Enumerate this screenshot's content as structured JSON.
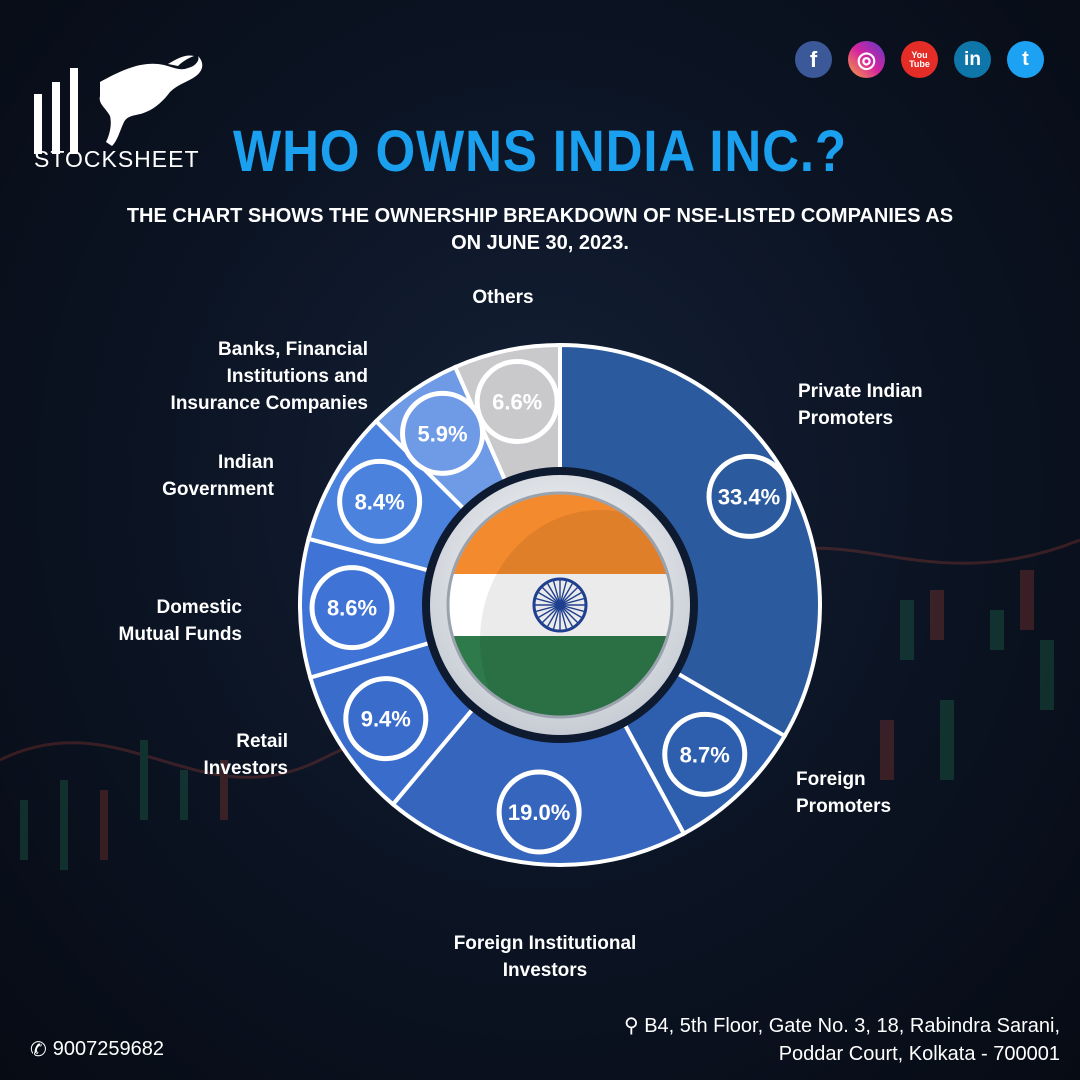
{
  "brand": {
    "name": "STOCKSHEET"
  },
  "socials": [
    {
      "name": "facebook-icon",
      "glyph": "f",
      "color": "#3b5998"
    },
    {
      "name": "instagram-icon",
      "glyph": "◎",
      "color": "#d6249f"
    },
    {
      "name": "youtube-icon",
      "glyph": "You\nTube",
      "color": "#e52d27"
    },
    {
      "name": "linkedin-icon",
      "glyph": "in",
      "color": "#0e76a8"
    },
    {
      "name": "twitter-icon",
      "glyph": "t",
      "color": "#1da1f2"
    }
  ],
  "header": {
    "title": "WHO OWNS INDIA INC.?",
    "subtitle": "THE CHART SHOWS THE OWNERSHIP BREAKDOWN OF NSE-LISTED COMPANIES AS ON JUNE 30, 2023."
  },
  "chart_data": {
    "type": "pie",
    "title": "WHO OWNS INDIA INC.?",
    "unit": "%",
    "slices": [
      {
        "label": "Private Indian\nPromoters",
        "value": 33.4,
        "display": "33.4%",
        "color": "#2b5a9e"
      },
      {
        "label": "Foreign\nPromoters",
        "value": 8.7,
        "display": "8.7%",
        "color": "#2d5fae"
      },
      {
        "label": "Foreign Institutional\nInvestors",
        "value": 19.0,
        "display": "19.0%",
        "color": "#3565bd"
      },
      {
        "label": "Retail\nInvestors",
        "value": 9.4,
        "display": "9.4%",
        "color": "#3a6ccc"
      },
      {
        "label": "Domestic\nMutual Funds",
        "value": 8.6,
        "display": "8.6%",
        "color": "#3f74d6"
      },
      {
        "label": "Indian\nGovernment",
        "value": 8.4,
        "display": "8.4%",
        "color": "#4a82de"
      },
      {
        "label": "Banks, Financial\nInstitutions and\nInsurance Companies",
        "value": 5.9,
        "display": "5.9%",
        "color": "#6e9ae6"
      },
      {
        "label": "Others",
        "value": 6.6,
        "display": "6.6%",
        "color": "#c9c9cc"
      }
    ]
  },
  "footer": {
    "phone": "9007259682",
    "address": "B4, 5th Floor, Gate No. 3, 18, Rabindra Sarani,\nPoddar Court, Kolkata - 700001"
  }
}
